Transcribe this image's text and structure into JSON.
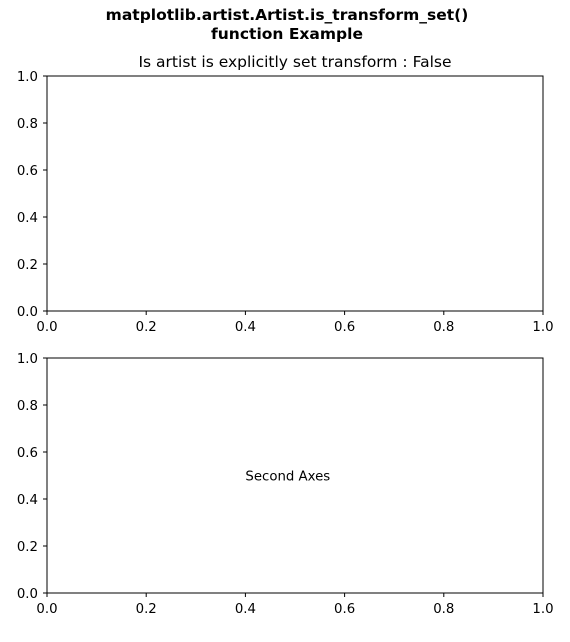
{
  "figure": {
    "suptitle_line1": "matplotlib.artist.Artist.is_transform_set()",
    "suptitle_line2": "function Example"
  },
  "chart_data": [
    {
      "type": "scatter",
      "title": "Is artist is explicitly set transform : False",
      "xlabel": "",
      "ylabel": "",
      "xlim": [
        0,
        1
      ],
      "ylim": [
        0,
        1
      ],
      "xticks": [
        "0.0",
        "0.2",
        "0.4",
        "0.6",
        "0.8",
        "1.0"
      ],
      "yticks": [
        "0.0",
        "0.2",
        "0.4",
        "0.6",
        "0.8",
        "1.0"
      ],
      "grid": false,
      "series": [],
      "annotations": []
    },
    {
      "type": "scatter",
      "title": "",
      "xlabel": "",
      "ylabel": "",
      "xlim": [
        0,
        1
      ],
      "ylim": [
        0,
        1
      ],
      "xticks": [
        "0.0",
        "0.2",
        "0.4",
        "0.6",
        "0.8",
        "1.0"
      ],
      "yticks": [
        "0.0",
        "0.2",
        "0.4",
        "0.6",
        "0.8",
        "1.0"
      ],
      "grid": false,
      "series": [],
      "annotations": [
        {
          "text": "Second Axes",
          "x": 0.4,
          "y": 0.5
        }
      ]
    }
  ]
}
